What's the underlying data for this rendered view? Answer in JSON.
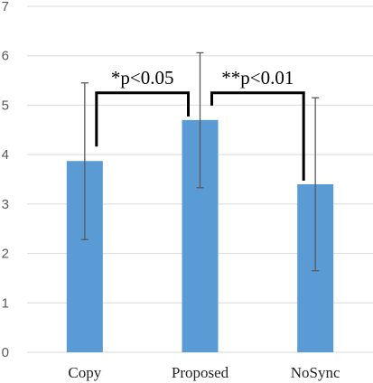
{
  "chart_data": {
    "type": "bar",
    "categories": [
      "Copy",
      "Proposed",
      "NoSync"
    ],
    "values": [
      3.87,
      4.7,
      3.4
    ],
    "error_bars": [
      {
        "low": 2.28,
        "high": 5.45
      },
      {
        "low": 3.33,
        "high": 6.06
      },
      {
        "low": 1.65,
        "high": 5.15
      }
    ],
    "ylim": [
      0,
      7
    ],
    "yticks": [
      "0",
      "1",
      "2",
      "3",
      "4",
      "5",
      "6",
      "7"
    ],
    "gridlines": true,
    "annotations": [
      {
        "text": "*p<0.05",
        "from": 0,
        "to": 1
      },
      {
        "text": "**p<0.01",
        "from": 1,
        "to": 2
      }
    ],
    "colors": {
      "bar": "#5b9bd5",
      "grid": "#d9d9d9",
      "error": "#595959",
      "bracket": "#000000"
    }
  }
}
